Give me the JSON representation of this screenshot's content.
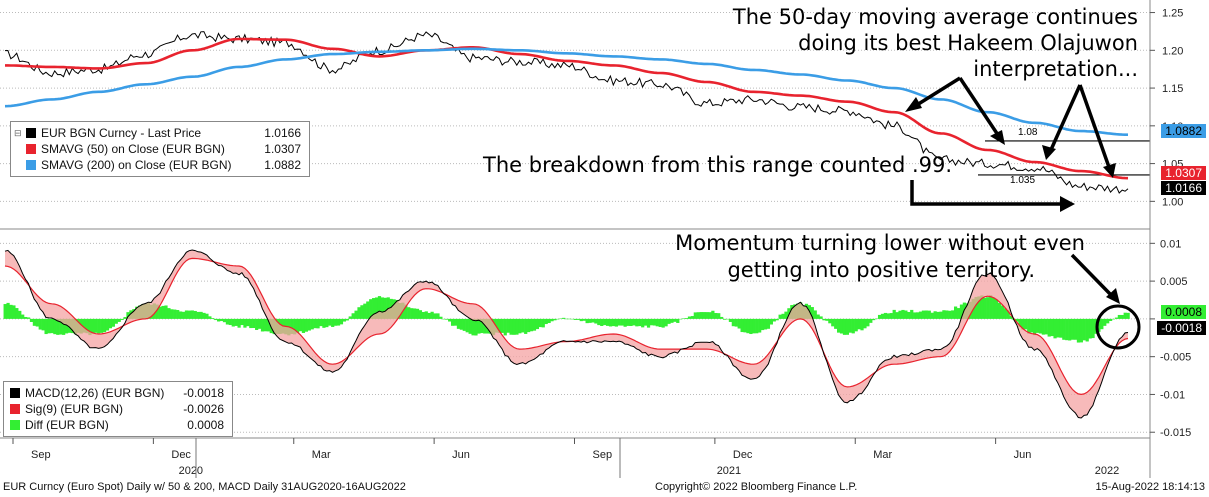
{
  "chart_data": [
    {
      "type": "line",
      "panel": "price",
      "ylim": [
        0.97,
        1.26
      ],
      "yticks": [
        1.0,
        1.05,
        1.1,
        1.15,
        1.2,
        1.25
      ],
      "ytick_labels": [
        "1.00",
        "1.05",
        "1.10",
        "1.15",
        "1.20",
        "1.25"
      ],
      "x_dates": [
        "2020-08-31",
        "2020-09-30",
        "2020-10-31",
        "2020-11-30",
        "2020-12-31",
        "2021-01-31",
        "2021-02-28",
        "2021-03-31",
        "2021-04-30",
        "2021-05-31",
        "2021-06-30",
        "2021-07-31",
        "2021-08-31",
        "2021-09-30",
        "2021-10-31",
        "2021-11-30",
        "2021-12-31",
        "2022-01-31",
        "2022-02-28",
        "2022-03-31",
        "2022-04-30",
        "2022-05-31",
        "2022-06-30",
        "2022-07-31",
        "2022-08-16"
      ],
      "series": [
        {
          "name": "EUR BGN Curncy - Last Price",
          "color": "#000000",
          "values": [
            1.195,
            1.17,
            1.175,
            1.195,
            1.22,
            1.215,
            1.21,
            1.175,
            1.2,
            1.22,
            1.19,
            1.185,
            1.18,
            1.16,
            1.155,
            1.13,
            1.135,
            1.125,
            1.12,
            1.1,
            1.055,
            1.05,
            1.045,
            1.02,
            1.0166
          ]
        },
        {
          "name": "SMAVG (50)  on Close (EUR BGN)",
          "color": "#e8232e",
          "values": [
            1.18,
            1.178,
            1.176,
            1.183,
            1.2,
            1.215,
            1.214,
            1.202,
            1.192,
            1.2,
            1.204,
            1.195,
            1.186,
            1.18,
            1.17,
            1.158,
            1.145,
            1.14,
            1.132,
            1.118,
            1.09,
            1.068,
            1.052,
            1.04,
            1.0307
          ]
        },
        {
          "name": "SMAVG (200)  on Close (EUR BGN)",
          "color": "#3b9de6",
          "values": [
            1.126,
            1.135,
            1.145,
            1.155,
            1.165,
            1.178,
            1.188,
            1.195,
            1.198,
            1.2,
            1.202,
            1.2,
            1.196,
            1.192,
            1.188,
            1.182,
            1.174,
            1.168,
            1.16,
            1.15,
            1.135,
            1.118,
            1.104,
            1.093,
            1.0882
          ]
        }
      ],
      "reference_lines": [
        {
          "label": "1.08",
          "value": 1.08
        },
        {
          "label": "1.035",
          "value": 1.035
        }
      ],
      "last_values": {
        "price": "1.0166",
        "sma50": "1.0307",
        "sma200": "1.0882"
      }
    },
    {
      "type": "line",
      "panel": "macd",
      "ylim": [
        -0.0155,
        0.0115
      ],
      "yticks": [
        0.01,
        0.005,
        0,
        -0.005,
        -0.01,
        -0.015
      ],
      "ytick_labels": [
        "0.01",
        "0.005",
        "",
        "-0.005",
        "-0.01",
        "-0.015"
      ],
      "series": [
        {
          "name": "MACD(12,26) (EUR BGN)",
          "color": "#000000",
          "values": [
            0.009,
            0.0,
            -0.004,
            0.002,
            0.009,
            0.006,
            -0.003,
            -0.007,
            0.001,
            0.005,
            0.0,
            -0.006,
            -0.003,
            -0.003,
            -0.005,
            -0.003,
            -0.008,
            0.002,
            -0.011,
            -0.005,
            -0.004,
            0.006,
            -0.004,
            -0.013,
            -0.0018
          ]
        },
        {
          "name": "Sig(9) (EUR BGN)",
          "color": "#e8232e",
          "values": [
            0.007,
            0.002,
            -0.002,
            0.0,
            0.008,
            0.007,
            -0.001,
            -0.006,
            -0.002,
            0.004,
            0.002,
            -0.004,
            -0.003,
            -0.002,
            -0.004,
            -0.004,
            -0.006,
            0.0,
            -0.009,
            -0.006,
            -0.005,
            0.003,
            -0.002,
            -0.01,
            -0.0026
          ]
        },
        {
          "name": "Diff (EUR BGN)",
          "color": "#33ee33",
          "type": "bar",
          "values": [
            0.002,
            -0.002,
            -0.002,
            0.002,
            0.001,
            -0.001,
            -0.002,
            -0.001,
            0.003,
            0.001,
            -0.002,
            -0.002,
            0.0,
            -0.001,
            -0.001,
            0.001,
            -0.002,
            0.002,
            -0.002,
            0.001,
            0.001,
            0.003,
            -0.002,
            -0.003,
            0.0008
          ]
        }
      ],
      "last_values": {
        "diff": "0.0008",
        "macd": "-0.0018",
        "sig": "-0.0026"
      }
    }
  ],
  "legends": {
    "price": [
      {
        "name": "EUR BGN Curncy - Last Price",
        "value": "1.0166",
        "color": "#000000"
      },
      {
        "name": "SMAVG (50)  on Close (EUR BGN)",
        "value": "1.0307",
        "color": "#e8232e"
      },
      {
        "name": "SMAVG (200)  on Close (EUR BGN)",
        "value": "1.0882",
        "color": "#3b9de6"
      }
    ],
    "macd": [
      {
        "name": "MACD(12,26) (EUR BGN)",
        "value": "-0.0018",
        "color": "#000000"
      },
      {
        "name": "Sig(9) (EUR BGN)",
        "value": "-0.0026",
        "color": "#e8232e"
      },
      {
        "name": "Diff (EUR BGN)",
        "value": "0.0008",
        "color": "#33ee33"
      }
    ]
  },
  "x_axis": {
    "months": [
      "Sep",
      "Dec",
      "Mar",
      "Jun",
      "Sep",
      "Dec",
      "Mar",
      "Jun"
    ],
    "years": [
      "2020",
      "2021",
      "2022"
    ]
  },
  "annotations": {
    "sma50_note": [
      "The 50-day moving average continues",
      "doing its best Hakeem Olajuwon",
      "interpretation..."
    ],
    "breakdown_note": "The breakdown from this range counted .99.",
    "momentum_note": [
      "Momentum turning lower without even",
      "getting into positive territory."
    ]
  },
  "footer": {
    "left": "EUR Curncy (Euro Spot) Daily w/ 50 & 200, MACD  Daily 31AUG2020-16AUG2022",
    "center": "Copyright© 2022 Bloomberg Finance L.P.",
    "right": "15-Aug-2022 18:14:13"
  }
}
